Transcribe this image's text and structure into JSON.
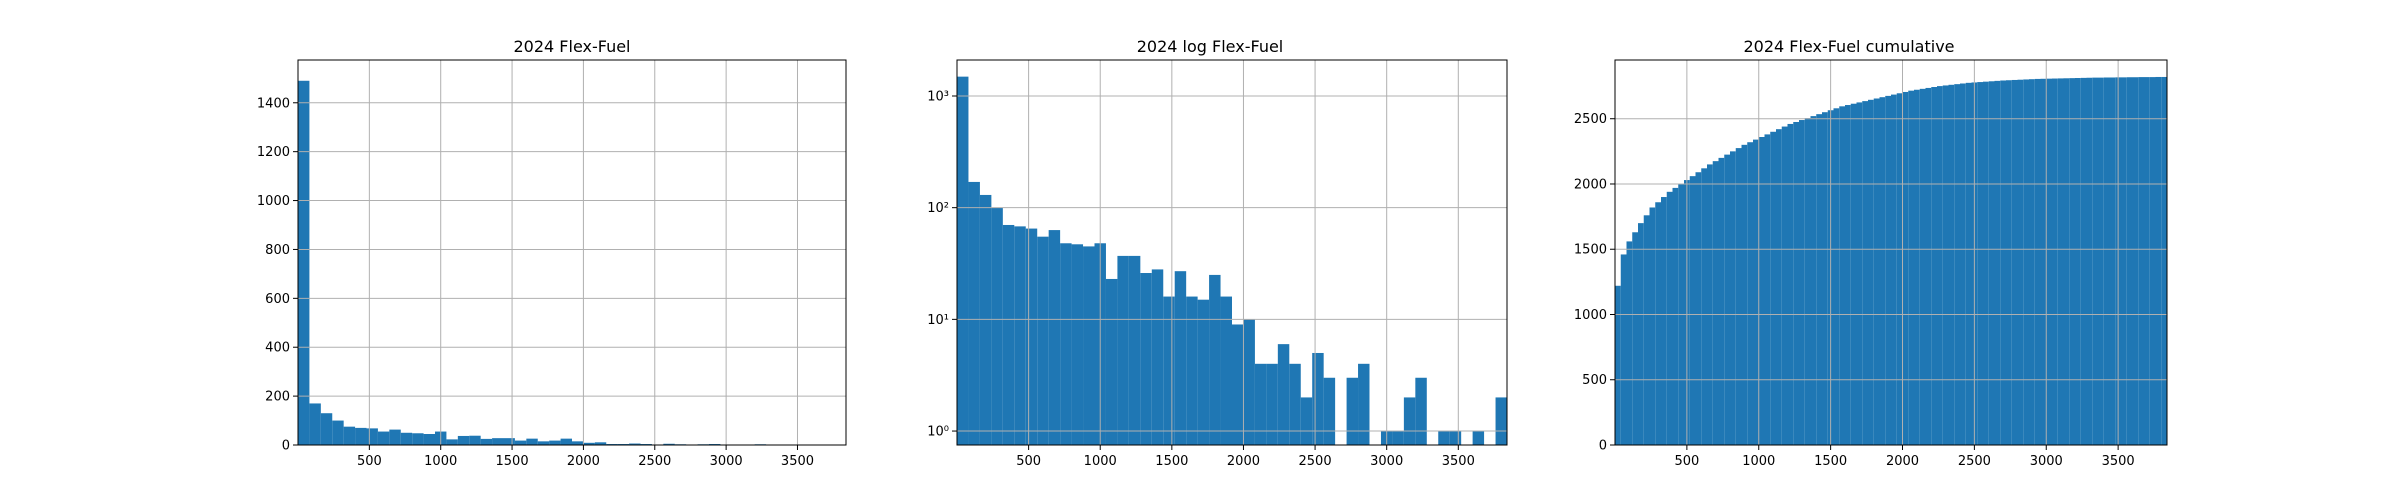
{
  "chart_data": [
    {
      "type": "bar",
      "title": "2024 Flex-Fuel",
      "scale": "linear",
      "bin_width": 80,
      "xlim": [
        0,
        3840
      ],
      "ylim": [
        0,
        1575
      ],
      "x_ticks": [
        500,
        1000,
        1500,
        2000,
        2500,
        3000,
        3500
      ],
      "y_ticks": [
        0,
        200,
        400,
        600,
        800,
        1000,
        1200,
        1400
      ],
      "grid": true,
      "color": "#1f77b4",
      "values": [
        1490,
        170,
        130,
        100,
        75,
        70,
        68,
        55,
        63,
        50,
        48,
        45,
        55,
        23,
        37,
        38,
        25,
        28,
        28,
        18,
        26,
        15,
        18,
        26,
        15,
        9,
        11,
        4,
        4,
        6,
        4,
        2,
        5,
        3,
        0,
        3,
        4,
        0,
        1,
        2,
        3,
        0,
        1,
        2,
        1,
        1,
        1,
        0
      ]
    },
    {
      "type": "bar",
      "title": "2024 log Flex-Fuel",
      "scale": "log",
      "bin_width": 80,
      "xlim": [
        0,
        3840
      ],
      "ylim": [
        0.75,
        2100
      ],
      "x_ticks": [
        500,
        1000,
        1500,
        2000,
        2500,
        3000,
        3500
      ],
      "y_ticks": [
        {
          "value": 1,
          "label": "10⁰"
        },
        {
          "value": 10,
          "label": "10¹"
        },
        {
          "value": 100,
          "label": "10²"
        },
        {
          "value": 1000,
          "label": "10³"
        }
      ],
      "grid": true,
      "color": "#1f77b4",
      "values": [
        1490,
        170,
        130,
        100,
        70,
        68,
        65,
        55,
        63,
        48,
        47,
        45,
        48,
        23,
        37,
        37,
        26,
        28,
        16,
        27,
        16,
        15,
        25,
        16,
        9,
        10,
        4,
        4,
        6,
        4,
        2,
        5,
        3,
        0,
        3,
        4,
        0,
        1,
        1,
        2,
        3,
        0,
        1,
        1,
        0,
        1,
        0,
        2
      ]
    },
    {
      "type": "bar",
      "title": "2024 Flex-Fuel cumulative",
      "scale": "linear",
      "bin_width": 40,
      "xlim": [
        0,
        3840
      ],
      "ylim": [
        0,
        2950
      ],
      "x_ticks": [
        500,
        1000,
        1500,
        2000,
        2500,
        3000,
        3500
      ],
      "y_ticks": [
        0,
        500,
        1000,
        1500,
        2000,
        2500
      ],
      "grid": true,
      "color": "#1f77b4",
      "values": [
        1220,
        1460,
        1560,
        1630,
        1700,
        1760,
        1820,
        1860,
        1900,
        1940,
        1970,
        2000,
        2030,
        2060,
        2090,
        2120,
        2150,
        2175,
        2200,
        2225,
        2250,
        2275,
        2300,
        2320,
        2340,
        2360,
        2380,
        2400,
        2420,
        2440,
        2460,
        2475,
        2490,
        2505,
        2520,
        2535,
        2550,
        2565,
        2580,
        2595,
        2605,
        2615,
        2625,
        2635,
        2645,
        2655,
        2665,
        2675,
        2685,
        2695,
        2705,
        2715,
        2722,
        2729,
        2736,
        2743,
        2750,
        2755,
        2760,
        2765,
        2770,
        2775,
        2778,
        2781,
        2784,
        2787,
        2790,
        2793,
        2795,
        2797,
        2799,
        2801,
        2803,
        2805,
        2806,
        2807,
        2808,
        2809,
        2810,
        2811,
        2812,
        2813,
        2814,
        2815,
        2815,
        2816,
        2816,
        2817,
        2817,
        2818,
        2818,
        2819,
        2819,
        2819,
        2820,
        2820
      ]
    }
  ]
}
